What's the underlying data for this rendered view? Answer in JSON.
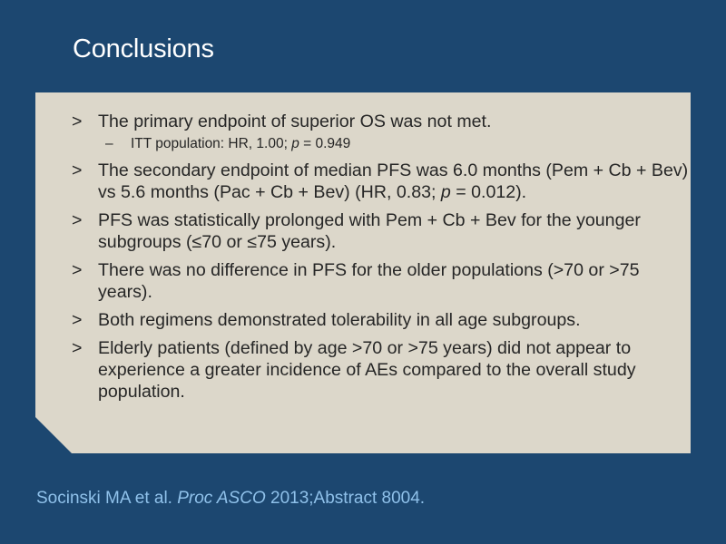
{
  "title": "Conclusions",
  "bullet_marker": ">",
  "sub_marker": "–",
  "bullets": [
    {
      "text": "The primary endpoint of superior OS was not met.",
      "sub": {
        "prefix": "ITT population: HR, 1.00; ",
        "italic": "p",
        "suffix": " = 0.949"
      }
    },
    {
      "prefix": "The secondary endpoint of median PFS was 6.0 months (Pem + Cb + Bev) vs 5.6 months (Pac + Cb + Bev) (HR, 0.83; ",
      "italic": "p",
      "suffix": " = 0.012)."
    },
    {
      "text": "PFS was statistically prolonged with Pem + Cb + Bev for the younger subgroups (≤70 or ≤75 years)."
    },
    {
      "text": "There was no difference in PFS for the older populations (>70 or >75 years)."
    },
    {
      "text": "Both regimens demonstrated tolerability in all age subgroups."
    },
    {
      "text": "Elderly patients (defined by age >70 or >75 years) did not appear to experience a greater incidence of AEs compared to the overall study population."
    }
  ],
  "citation": {
    "authors": "Socinski MA et al. ",
    "journal": "Proc ASCO",
    "details": " 2013;Abstract 8004."
  },
  "colors": {
    "background": "#1c4770",
    "panel": "#dcd7ca",
    "text": "#262626",
    "citation": "#8fc1ea"
  }
}
